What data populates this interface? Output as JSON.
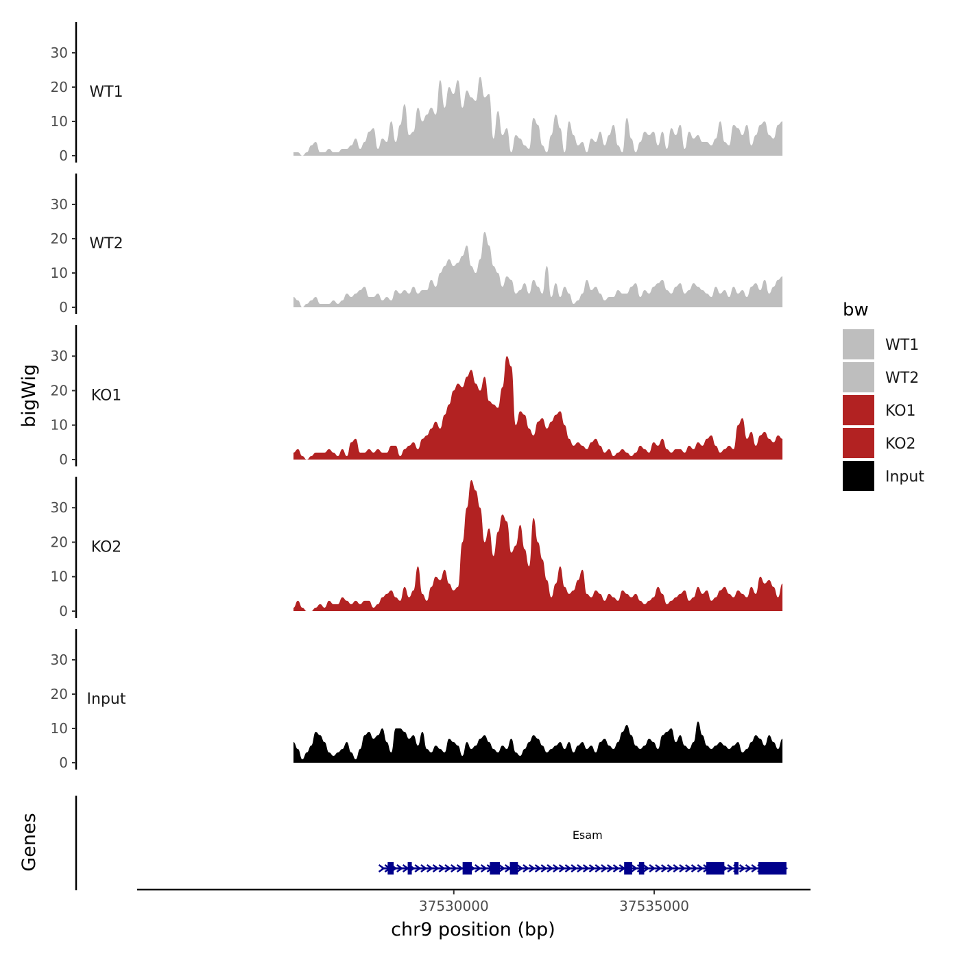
{
  "chart_data": {
    "type": "area",
    "subtype": "genome-track",
    "chromosome": "chr9",
    "xlabel": "chr9 position (bp)",
    "ylabel": "bigWig",
    "genes_label": "Genes",
    "xlim": [
      37522100,
      37538900
    ],
    "x_data_range": [
      37526000,
      37538200
    ],
    "xticks": [
      37530000,
      37535000
    ],
    "xtick_labels": [
      "37530000",
      "37535000"
    ],
    "ylim": [
      0,
      39
    ],
    "yticks": [
      0,
      10,
      20,
      30
    ],
    "ytick_labels": [
      "0",
      "10",
      "20",
      "30"
    ],
    "legend": {
      "title": "bw",
      "position": "right",
      "entries": [
        {
          "label": "WT1",
          "color": "#BEBEBE"
        },
        {
          "label": "WT2",
          "color": "#BEBEBE"
        },
        {
          "label": "KO1",
          "color": "#B22222"
        },
        {
          "label": "KO2",
          "color": "#B22222"
        },
        {
          "label": "Input",
          "color": "#000000"
        }
      ]
    },
    "tracks": [
      {
        "name": "WT1",
        "color": "#BEBEBE",
        "values": [
          1,
          1,
          0,
          1,
          3,
          4,
          1,
          1,
          2,
          1,
          1,
          2,
          2,
          3,
          5,
          2,
          4,
          7,
          8,
          2,
          5,
          4,
          10,
          4,
          9,
          15,
          6,
          7,
          14,
          10,
          12,
          14,
          12,
          22,
          14,
          20,
          18,
          22,
          14,
          19,
          17,
          16,
          23,
          17,
          18,
          5,
          13,
          6,
          8,
          1,
          6,
          5,
          3,
          2,
          11,
          9,
          3,
          1,
          6,
          12,
          8,
          1,
          10,
          6,
          3,
          4,
          1,
          5,
          4,
          7,
          3,
          6,
          9,
          3,
          1,
          11,
          5,
          1,
          4,
          7,
          6,
          7,
          3,
          7,
          2,
          8,
          6,
          9,
          2,
          7,
          5,
          6,
          4,
          4,
          3,
          5,
          10,
          4,
          3,
          9,
          8,
          6,
          9,
          3,
          6,
          9,
          10,
          6,
          5,
          9,
          10
        ]
      },
      {
        "name": "WT2",
        "color": "#BEBEBE",
        "values": [
          3,
          2,
          0,
          1,
          2,
          3,
          1,
          1,
          1,
          2,
          1,
          2,
          4,
          3,
          4,
          5,
          6,
          3,
          3,
          4,
          2,
          3,
          2,
          5,
          4,
          5,
          4,
          6,
          4,
          5,
          5,
          8,
          6,
          10,
          12,
          14,
          12,
          13,
          15,
          18,
          12,
          10,
          14,
          22,
          18,
          12,
          10,
          6,
          9,
          8,
          4,
          5,
          7,
          4,
          8,
          6,
          4,
          12,
          3,
          7,
          3,
          6,
          4,
          1,
          2,
          4,
          8,
          5,
          6,
          4,
          2,
          3,
          3,
          5,
          4,
          4,
          6,
          7,
          3,
          5,
          4,
          6,
          7,
          8,
          5,
          4,
          6,
          7,
          4,
          5,
          7,
          6,
          5,
          4,
          3,
          6,
          4,
          5,
          3,
          6,
          4,
          5,
          3,
          6,
          7,
          5,
          8,
          4,
          6,
          8,
          9
        ]
      },
      {
        "name": "KO1",
        "color": "#B22222",
        "values": [
          2,
          3,
          1,
          0,
          1,
          2,
          2,
          2,
          3,
          2,
          1,
          3,
          1,
          5,
          6,
          2,
          2,
          3,
          2,
          3,
          2,
          2,
          4,
          4,
          1,
          3,
          4,
          5,
          3,
          6,
          7,
          9,
          11,
          9,
          13,
          16,
          20,
          22,
          21,
          24,
          26,
          22,
          20,
          24,
          17,
          16,
          15,
          21,
          30,
          27,
          10,
          14,
          13,
          9,
          7,
          11,
          12,
          9,
          11,
          13,
          14,
          10,
          6,
          4,
          5,
          4,
          3,
          5,
          6,
          4,
          2,
          3,
          1,
          2,
          3,
          2,
          1,
          2,
          4,
          3,
          2,
          5,
          4,
          6,
          3,
          2,
          3,
          3,
          2,
          4,
          3,
          5,
          4,
          6,
          7,
          4,
          2,
          3,
          4,
          3,
          10,
          12,
          6,
          8,
          4,
          7,
          8,
          6,
          5,
          7,
          6
        ]
      },
      {
        "name": "KO2",
        "color": "#B22222",
        "values": [
          1,
          3,
          1,
          0,
          0,
          1,
          2,
          1,
          3,
          2,
          2,
          4,
          3,
          2,
          3,
          2,
          3,
          3,
          1,
          2,
          4,
          5,
          6,
          4,
          3,
          7,
          4,
          6,
          13,
          5,
          3,
          7,
          10,
          9,
          12,
          8,
          6,
          7,
          20,
          30,
          38,
          35,
          30,
          20,
          24,
          16,
          23,
          28,
          26,
          17,
          19,
          25,
          18,
          13,
          27,
          20,
          15,
          9,
          4,
          8,
          13,
          7,
          5,
          6,
          9,
          12,
          5,
          4,
          6,
          5,
          3,
          5,
          4,
          3,
          6,
          5,
          4,
          5,
          3,
          2,
          3,
          4,
          7,
          5,
          2,
          3,
          4,
          5,
          6,
          3,
          4,
          7,
          5,
          6,
          3,
          4,
          6,
          7,
          5,
          4,
          6,
          5,
          4,
          7,
          5,
          10,
          8,
          9,
          7,
          4,
          8
        ]
      },
      {
        "name": "Input",
        "color": "#000000",
        "values": [
          6,
          4,
          1,
          3,
          5,
          9,
          8,
          6,
          3,
          2,
          3,
          4,
          6,
          3,
          1,
          4,
          8,
          9,
          7,
          8,
          10,
          6,
          3,
          10,
          10,
          9,
          7,
          8,
          5,
          9,
          4,
          3,
          5,
          4,
          3,
          7,
          6,
          5,
          2,
          6,
          4,
          5,
          7,
          8,
          6,
          4,
          3,
          5,
          4,
          7,
          3,
          2,
          4,
          6,
          8,
          7,
          5,
          3,
          4,
          5,
          6,
          4,
          6,
          3,
          5,
          6,
          4,
          5,
          3,
          6,
          7,
          5,
          4,
          6,
          9,
          11,
          8,
          5,
          4,
          5,
          7,
          6,
          4,
          8,
          9,
          10,
          6,
          8,
          5,
          4,
          6,
          12,
          8,
          5,
          4,
          5,
          6,
          5,
          4,
          5,
          6,
          3,
          4,
          6,
          8,
          7,
          5,
          8,
          6,
          4,
          7
        ]
      }
    ],
    "genes": [
      {
        "name": "Esam",
        "strand": "+",
        "start": 37528200,
        "end": 37538300,
        "exons": [
          [
            37528350,
            37528500
          ],
          [
            37528850,
            37528900
          ],
          [
            37530220,
            37530450
          ],
          [
            37530900,
            37531150
          ],
          [
            37531400,
            37531600
          ],
          [
            37534250,
            37534450
          ],
          [
            37534620,
            37534750
          ],
          [
            37536300,
            37536750
          ],
          [
            37537000,
            37537100
          ],
          [
            37537600,
            37538300
          ]
        ]
      }
    ]
  }
}
